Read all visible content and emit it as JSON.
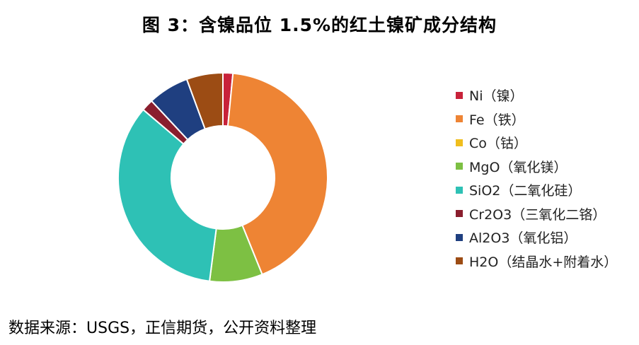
{
  "title": "图 3：含镍品位 1.5%的红土镍矿成分结构",
  "source": "数据来源：USGS，正信期货，公开资料整理",
  "chart_data": {
    "type": "pie",
    "variant": "donut",
    "legend_position": "right",
    "slices": [
      {
        "label": "Ni（镍）",
        "value": 1.5,
        "color": "#C8223A"
      },
      {
        "label": "Fe（铁）",
        "value": 41.5,
        "color": "#EE8434"
      },
      {
        "label": "Co（钴）",
        "value": 0,
        "color": "#F0BE1E"
      },
      {
        "label": "MgO（氧化镁）",
        "value": 8.0,
        "color": "#7DC043"
      },
      {
        "label": "SiO2（二氧化硅）",
        "value": 33.5,
        "color": "#2EC1B5"
      },
      {
        "label": "Cr2O3（三氧化二铬）",
        "value": 1.8,
        "color": "#8A1E2E"
      },
      {
        "label": "Al2O3（氧化铝）",
        "value": 6.2,
        "color": "#1F3F80"
      },
      {
        "label": "H2O（结晶水+附着水）",
        "value": 5.5,
        "color": "#9C4C14"
      }
    ]
  }
}
